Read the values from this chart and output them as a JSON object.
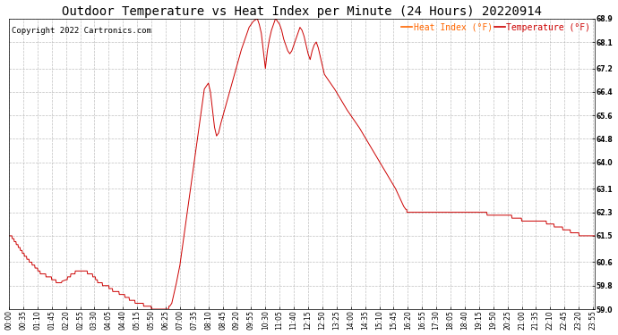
{
  "title": "Outdoor Temperature vs Heat Index per Minute (24 Hours) 20220914",
  "copyright": "Copyright 2022 Cartronics.com",
  "legend_heat": "Heat Index (°F)",
  "legend_temp": "Temperature (°F)",
  "line_color": "#cc0000",
  "legend_color_heat": "#ff6600",
  "legend_color_temp": "#cc0000",
  "background_color": "#ffffff",
  "grid_color": "#b0b0b0",
  "ylim_min": 59.0,
  "ylim_max": 68.9,
  "yticks": [
    59.0,
    59.8,
    60.6,
    61.5,
    62.3,
    63.1,
    64.0,
    64.8,
    65.6,
    66.4,
    67.2,
    68.1,
    68.9
  ],
  "title_fontsize": 10,
  "copyright_fontsize": 6.5,
  "legend_fontsize": 7,
  "tick_fontsize": 5.5,
  "minutes_total": 1440,
  "xtick_positions": [
    0,
    35,
    70,
    105,
    140,
    175,
    210,
    245,
    280,
    315,
    350,
    385,
    420,
    455,
    490,
    525,
    560,
    595,
    630,
    665,
    700,
    735,
    770,
    805,
    840,
    875,
    910,
    945,
    980,
    1015,
    1050,
    1085,
    1120,
    1155,
    1190,
    1225,
    1260,
    1295,
    1330,
    1365,
    1400,
    1435
  ],
  "xtick_labels": [
    "00:00",
    "00:35",
    "01:10",
    "01:45",
    "02:20",
    "02:55",
    "03:30",
    "04:05",
    "04:40",
    "05:15",
    "05:50",
    "06:25",
    "07:00",
    "07:35",
    "08:10",
    "08:45",
    "09:20",
    "09:55",
    "10:30",
    "11:05",
    "11:40",
    "12:15",
    "12:50",
    "13:25",
    "14:00",
    "14:35",
    "15:10",
    "15:45",
    "16:20",
    "16:55",
    "17:30",
    "18:05",
    "18:40",
    "19:15",
    "19:50",
    "20:25",
    "21:00",
    "21:35",
    "22:10",
    "22:45",
    "23:20",
    "23:55"
  ]
}
